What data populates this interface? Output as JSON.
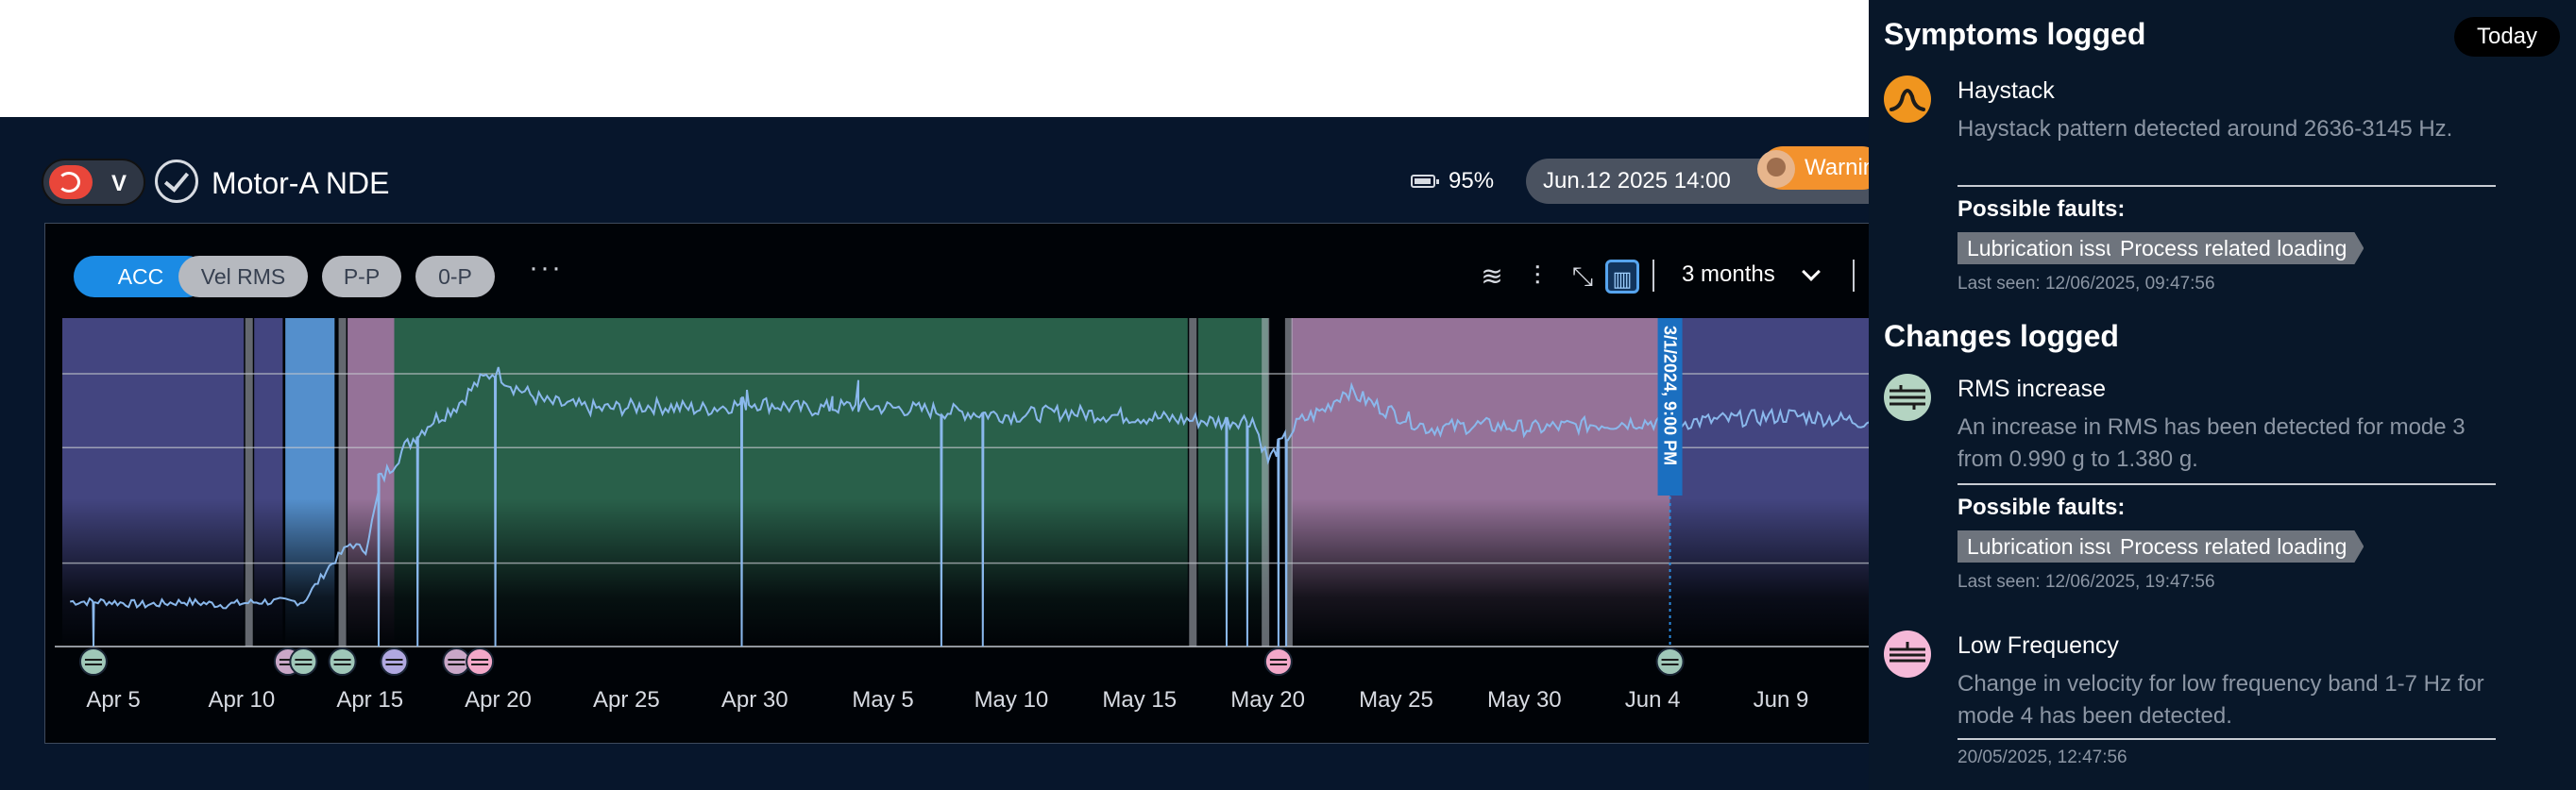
{
  "header": {
    "sensor_letter": "V",
    "asset_title": "Motor-A NDE",
    "battery": "95%",
    "datetime": "Jun.12 2025 14:00",
    "status": "Warning",
    "status_color": "#f3922d"
  },
  "chart_toolbar": {
    "modes": [
      "ACC",
      "Vel RMS",
      "P-P",
      "0-P"
    ],
    "more": "···",
    "range": "3 months"
  },
  "chart_data": {
    "type": "line",
    "x_ticks": [
      "Apr 5",
      "Apr 10",
      "Apr 15",
      "Apr 20",
      "Apr 25",
      "Apr 30",
      "May 5",
      "May 10",
      "May 15",
      "May 20",
      "May 25",
      "May 30",
      "Jun 4",
      "Jun 9"
    ],
    "cursor_label": "3/1/2024, 9:00 PM",
    "line_color": "#8ab8ec",
    "series": [
      {
        "values": [
          [
            3.6,
            0.14
          ],
          [
            5,
            0.14
          ],
          [
            6.5,
            0.13
          ],
          [
            8,
            0.14
          ],
          [
            9.5,
            0.13
          ],
          [
            11,
            0.14
          ],
          [
            12.6,
            0.14
          ],
          [
            13.6,
            0.25
          ],
          [
            14.4,
            0.32
          ],
          [
            15,
            0.3
          ],
          [
            15.6,
            0.52
          ],
          [
            16.5,
            0.62
          ],
          [
            17.5,
            0.7
          ],
          [
            18.5,
            0.75
          ],
          [
            19.3,
            0.82
          ],
          [
            20,
            0.86
          ],
          [
            20.7,
            0.81
          ],
          [
            22,
            0.76
          ],
          [
            24,
            0.74
          ],
          [
            26,
            0.75
          ],
          [
            28,
            0.74
          ],
          [
            30,
            0.76
          ],
          [
            32,
            0.74
          ],
          [
            34,
            0.75
          ],
          [
            36,
            0.74
          ],
          [
            38,
            0.73
          ],
          [
            40,
            0.72
          ],
          [
            42,
            0.73
          ],
          [
            44,
            0.72
          ],
          [
            46,
            0.71
          ],
          [
            48,
            0.7
          ],
          [
            49.2,
            0.71
          ],
          [
            49.8,
            0.58
          ],
          [
            51,
            0.7
          ],
          [
            52,
            0.74
          ],
          [
            52.8,
            0.8
          ],
          [
            54,
            0.75
          ],
          [
            56,
            0.68
          ],
          [
            58,
            0.69
          ],
          [
            60,
            0.68
          ],
          [
            62,
            0.69
          ],
          [
            64,
            0.7
          ],
          [
            66,
            0.7
          ],
          [
            68,
            0.71
          ],
          [
            70,
            0.72
          ],
          [
            73,
            0.7
          ]
        ]
      }
    ],
    "dips": [
      4.5,
      15.5,
      17.0,
      20.0,
      29.5,
      37.2,
      38.8,
      48.2,
      49.0,
      50.2,
      50.5
    ],
    "spikes": [
      [
        29.7,
        0.8
      ],
      [
        33.0,
        0.78
      ],
      [
        34.0,
        0.83
      ]
    ],
    "gridlines": [
      0.85,
      0.62,
      0.26
    ],
    "bands": [
      {
        "from": 3.3,
        "to": 10.3,
        "color": "#4a4c8e"
      },
      {
        "from": 10.7,
        "to": 11.8,
        "color": "#4a4c8e"
      },
      {
        "from": 11.9,
        "to": 13.8,
        "color": "#5d9ee2"
      },
      {
        "from": 14.3,
        "to": 16.1,
        "color": "#a57ea8"
      },
      {
        "from": 16.1,
        "to": 46.7,
        "color": "#2e6a52"
      },
      {
        "from": 47.1,
        "to": 49.8,
        "color": "#2e6a52"
      },
      {
        "from": 50.7,
        "to": 65.3,
        "color": "#a57ea8"
      },
      {
        "from": 65.3,
        "to": 73,
        "color": "#4a4c8e"
      }
    ],
    "dividers": [
      10.5,
      46.9,
      49.7,
      50.6,
      14.1
    ],
    "cursor_x": 65.3,
    "markers": [
      {
        "x": 4.5,
        "color": "#9fc7b8"
      },
      {
        "x": 12.0,
        "color": "#c9a7c7"
      },
      {
        "x": 12.6,
        "color": "#9fc7b8"
      },
      {
        "x": 14.1,
        "color": "#9fc7b8"
      },
      {
        "x": 16.1,
        "color": "#b0a8e0"
      },
      {
        "x": 18.5,
        "color": "#c9a7c7"
      },
      {
        "x": 19.4,
        "color": "#f2a8c8"
      },
      {
        "x": 50.2,
        "color": "#f2a8c8"
      },
      {
        "x": 65.3,
        "color": "#9fc7b8"
      }
    ],
    "x_range": [
      3.3,
      73
    ],
    "y_range": [
      0,
      1
    ],
    "grid": true
  },
  "side_panel": {
    "symptoms_heading": "Symptoms logged",
    "today": "Today",
    "changes_heading": "Changes logged",
    "possible_faults_label": "Possible faults:",
    "events": [
      {
        "title": "Haystack",
        "desc": "Haystack pattern detected around 2636-3145 Hz.",
        "faults": [
          "Lubrication issues",
          "Process related loading"
        ],
        "last_seen": "Last seen: 12/06/2025, 09:47:56",
        "icon_color": "#f0951e"
      },
      {
        "title": "RMS increase",
        "desc": "An increase in RMS has been detected for mode 3 from 0.990 g to 1.380 g.",
        "faults": [
          "Lubrication issues",
          "Process related loading"
        ],
        "last_seen": "Last seen: 12/06/2025, 19:47:56",
        "icon_color": "#b4d4c2"
      },
      {
        "title": "Low Frequency",
        "desc": "Change in velocity for low frequency band 1-7 Hz for mode 4 has been detected.",
        "last_seen": "20/05/2025, 12:47:56",
        "icon_color": "#f5b9d8"
      }
    ]
  }
}
